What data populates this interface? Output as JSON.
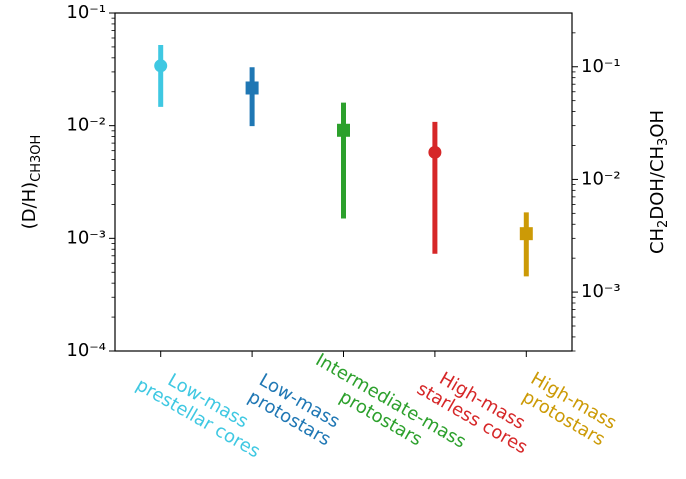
{
  "chart_data": {
    "type": "errorbar",
    "categories": [
      "Low-mass\nprestellar cores",
      "Low-mass\nprotostars",
      "Intermediate-mass\nprotostars",
      "High-mass\nstarless cores",
      "High-mass\nprotostars"
    ],
    "values": [
      0.034,
      0.0216,
      0.0091,
      0.0058,
      0.0011
    ],
    "lower": [
      0.0147,
      0.0099,
      0.0015,
      0.00073,
      0.00046
    ],
    "upper": [
      0.052,
      0.033,
      0.016,
      0.0108,
      0.0017
    ],
    "colors": [
      "#3fc8e2",
      "#1f77b4",
      "#2ca02c",
      "#d62728",
      "#cc9a06"
    ],
    "markers": [
      "circle",
      "square",
      "square",
      "circle",
      "square"
    ],
    "ylabel": [
      "(D/H)",
      "CH3OH"
    ],
    "y2label": [
      "CH",
      "2",
      "DOH/CH",
      "3",
      "OH"
    ],
    "ylim": [
      0.0001,
      0.1
    ],
    "yticks": [
      {
        "value": 0.0001,
        "label": "10⁻⁴"
      },
      {
        "value": 0.001,
        "label": "10⁻³"
      },
      {
        "value": 0.01,
        "label": "10⁻²"
      },
      {
        "value": 0.1,
        "label": "10⁻¹"
      }
    ],
    "y2lim": [
      0.0003,
      0.3
    ],
    "y2ticks": [
      {
        "value": 0.001,
        "label": "10⁻³"
      },
      {
        "value": 0.01,
        "label": "10⁻²"
      },
      {
        "value": 0.1,
        "label": "10⁻¹"
      }
    ],
    "log_scale": true
  }
}
